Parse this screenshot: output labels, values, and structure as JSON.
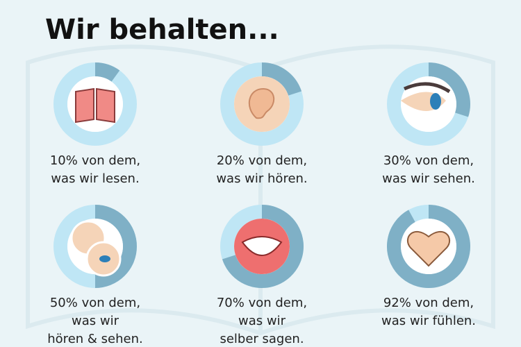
{
  "title": "Wir behalten...",
  "chart_data": [
    {
      "type": "donut",
      "values": [
        10
      ],
      "caption": [
        "10% von dem,",
        "was wir lesen."
      ]
    },
    {
      "type": "donut",
      "values": [
        20
      ],
      "caption": [
        "20% von dem,",
        "was wir hören."
      ]
    },
    {
      "type": "donut",
      "values": [
        30
      ],
      "caption": [
        "30% von dem,",
        "was wir sehen."
      ]
    },
    {
      "type": "donut",
      "values": [
        50
      ],
      "caption": [
        "50% von dem,",
        "was wir",
        "hören & sehen."
      ]
    },
    {
      "type": "donut",
      "values": [
        70
      ],
      "caption": [
        "70% von dem,",
        "was wir",
        "selber sagen."
      ]
    },
    {
      "type": "donut",
      "values": [
        92
      ],
      "caption": [
        "92% von dem,",
        "was wir fühlen."
      ]
    }
  ]
}
